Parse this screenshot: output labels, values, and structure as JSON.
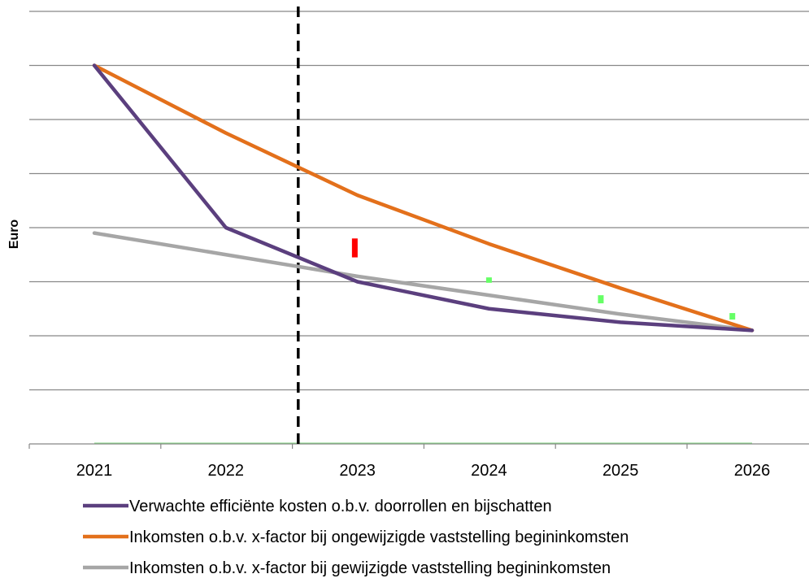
{
  "chart_data": {
    "type": "line",
    "title": "",
    "xlabel": "",
    "ylabel": "Euro",
    "categories": [
      "2021",
      "2022",
      "2023",
      "2024",
      "2025",
      "2026"
    ],
    "ylim": [
      0,
      8
    ],
    "grid": true,
    "y_tick_labels_shown": false,
    "legend_position": "bottom",
    "series": [
      {
        "name": "Verwachte efficiënte kosten o.b.v. doorrollen en bijschatten",
        "color": "#5b3f7e",
        "values": [
          7.0,
          4.0,
          3.0,
          2.5,
          2.25,
          2.1
        ]
      },
      {
        "name": "Inkomsten o.b.v. x-factor bij ongewijzigde vaststelling begininkomsten",
        "color": "#e3701b",
        "values": [
          7.0,
          5.75,
          4.6,
          3.7,
          2.88,
          2.1
        ]
      },
      {
        "name": "Inkomsten o.b.v. x-factor bij gewijzigde vaststelling begininkomsten",
        "color": "#a6a6a6",
        "values": [
          3.9,
          3.5,
          3.1,
          2.75,
          2.4,
          2.1
        ]
      }
    ],
    "reference_line": {
      "x_position_between": [
        "2021",
        "2022"
      ],
      "x_value": 1.55,
      "style": "dashed",
      "color": "#000000"
    },
    "markers": [
      {
        "x_value": 1.98,
        "y_from": 3.8,
        "y_to": 3.45,
        "color": "#ff0000"
      },
      {
        "x_value": 3.0,
        "y_from": 3.08,
        "y_to": 2.98,
        "color": "#66ff66"
      },
      {
        "x_value": 3.85,
        "y_from": 2.75,
        "y_to": 2.6,
        "color": "#66ff66"
      },
      {
        "x_value": 4.85,
        "y_from": 2.42,
        "y_to": 2.3,
        "color": "#66ff66"
      }
    ]
  }
}
